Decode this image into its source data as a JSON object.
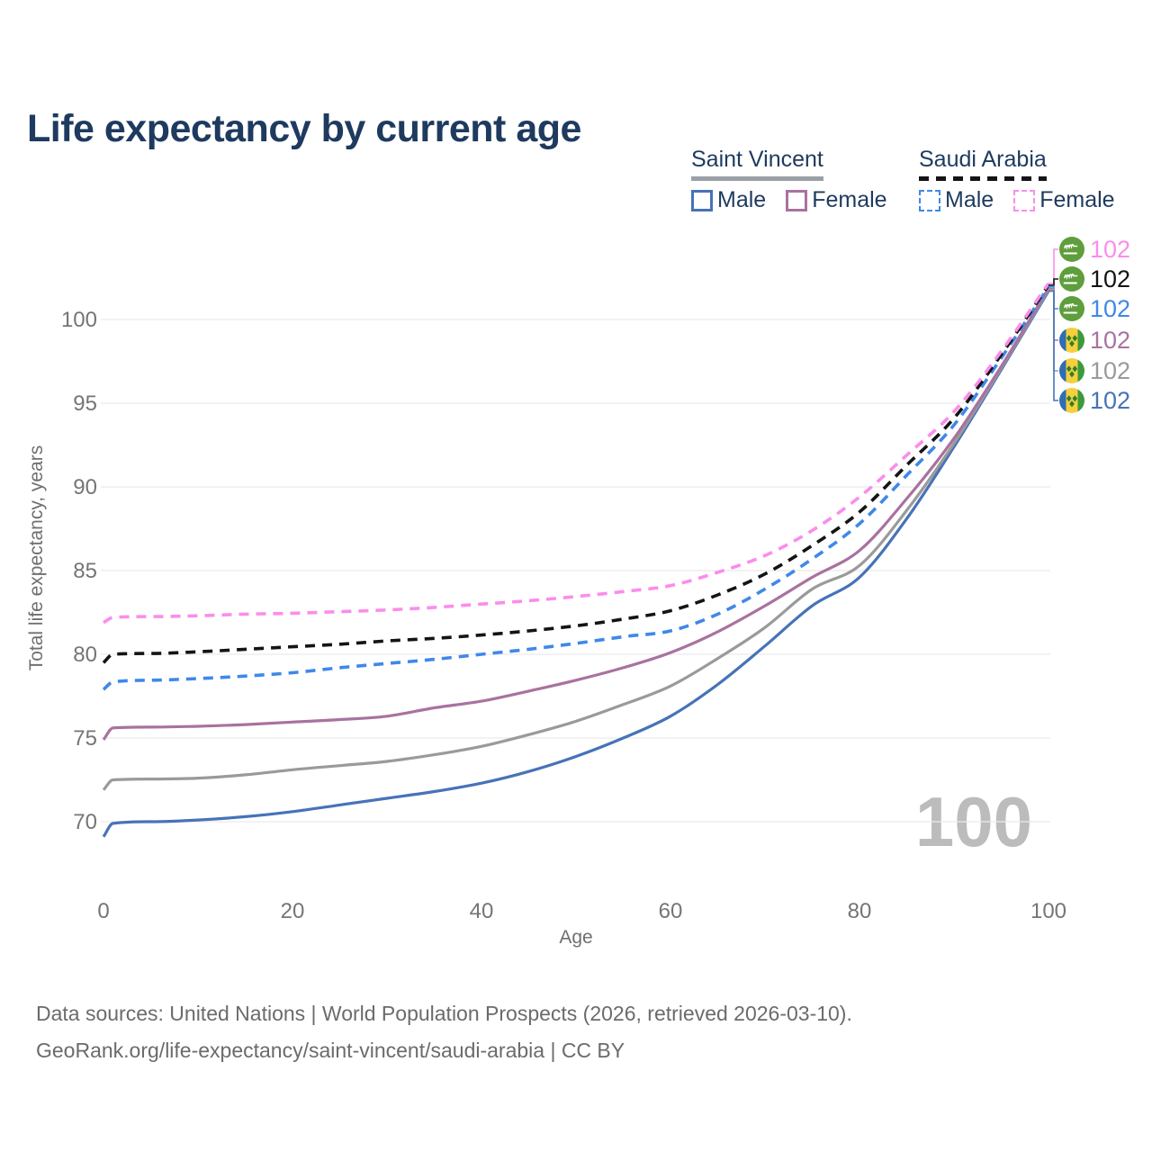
{
  "title": "Life expectancy by current age",
  "legend": {
    "groups": [
      {
        "name": "Saint Vincent",
        "line_style": "solid",
        "underline_color": "#9aa0a6",
        "items": [
          {
            "label": "Male",
            "color": "#4673b8",
            "dashed": false
          },
          {
            "label": "Female",
            "color": "#a9729f",
            "dashed": false
          }
        ]
      },
      {
        "name": "Saudi Arabia",
        "line_style": "dashed",
        "underline_color": "#141414",
        "items": [
          {
            "label": "Male",
            "color": "#3f88e8",
            "dashed": true
          },
          {
            "label": "Female",
            "color": "#fb8deb",
            "dashed": true
          }
        ]
      }
    ]
  },
  "chart_data": {
    "type": "line",
    "title": "Life expectancy by current age",
    "xlabel": "Age",
    "ylabel": "Total life expectancy, years",
    "xlim": [
      0,
      100
    ],
    "ylim": [
      68.5,
      102.5
    ],
    "x_ticks": [
      0,
      20,
      40,
      60,
      80,
      100
    ],
    "y_ticks": [
      70,
      75,
      80,
      85,
      90,
      95,
      100
    ],
    "grid": "horizontal",
    "legend_position": "top-right",
    "watermark": "100",
    "x": [
      0,
      1,
      5,
      10,
      15,
      20,
      25,
      30,
      35,
      40,
      45,
      50,
      55,
      60,
      65,
      70,
      75,
      80,
      85,
      90,
      95,
      100
    ],
    "series": [
      {
        "name": "Saudi Arabia Female",
        "country": "Saudi Arabia",
        "sex": "Female",
        "color": "#fb8deb",
        "dashed": true,
        "flag": "saudi-arabia",
        "end_label": "102",
        "values": [
          81.9,
          82.2,
          82.25,
          82.3,
          82.4,
          82.45,
          82.55,
          82.65,
          82.8,
          83.0,
          83.2,
          83.45,
          83.75,
          84.1,
          84.9,
          85.9,
          87.4,
          89.4,
          91.9,
          94.5,
          98.1,
          102.15
        ]
      },
      {
        "name": "Saudi Arabia Both sexes",
        "country": "Saudi Arabia",
        "sex": "Both",
        "color": "#141414",
        "dashed": true,
        "flag": "saudi-arabia",
        "end_label": "102",
        "values": [
          79.5,
          80.0,
          80.05,
          80.15,
          80.3,
          80.45,
          80.6,
          80.8,
          80.95,
          81.15,
          81.4,
          81.7,
          82.1,
          82.6,
          83.55,
          84.8,
          86.5,
          88.5,
          91.3,
          94.1,
          97.9,
          102.05
        ]
      },
      {
        "name": "Saudi Arabia Male",
        "country": "Saudi Arabia",
        "sex": "Male",
        "color": "#3f88e8",
        "dashed": true,
        "flag": "saudi-arabia",
        "end_label": "102",
        "values": [
          77.9,
          78.35,
          78.45,
          78.55,
          78.7,
          78.9,
          79.2,
          79.45,
          79.7,
          80.0,
          80.3,
          80.65,
          81.05,
          81.4,
          82.4,
          83.9,
          85.7,
          87.8,
          90.7,
          93.7,
          97.7,
          101.95
        ]
      },
      {
        "name": "Saint Vincent Female",
        "country": "Saint Vincent",
        "sex": "Female",
        "color": "#a9729f",
        "dashed": false,
        "flag": "saint-vincent",
        "end_label": "102",
        "values": [
          74.9,
          75.6,
          75.65,
          75.7,
          75.8,
          75.95,
          76.1,
          76.3,
          76.8,
          77.2,
          77.8,
          78.45,
          79.2,
          80.1,
          81.35,
          82.9,
          84.6,
          86.2,
          89.3,
          92.9,
          97.2,
          101.85
        ]
      },
      {
        "name": "Saint Vincent Both sexes",
        "country": "Saint Vincent",
        "sex": "Both",
        "color": "#9a9a9a",
        "dashed": false,
        "flag": "saint-vincent",
        "end_label": "102",
        "values": [
          71.9,
          72.5,
          72.55,
          72.6,
          72.8,
          73.1,
          73.35,
          73.6,
          74.0,
          74.5,
          75.2,
          76.0,
          77.0,
          78.1,
          79.75,
          81.6,
          83.9,
          85.3,
          88.6,
          92.6,
          97.1,
          101.78
        ]
      },
      {
        "name": "Saint Vincent Male",
        "country": "Saint Vincent",
        "sex": "Male",
        "color": "#4673b8",
        "dashed": false,
        "flag": "saint-vincent",
        "end_label": "102",
        "values": [
          69.1,
          69.9,
          70.0,
          70.1,
          70.3,
          70.6,
          71.0,
          71.4,
          71.8,
          72.3,
          73.0,
          73.9,
          75.0,
          76.3,
          78.2,
          80.5,
          82.9,
          84.6,
          88.1,
          92.4,
          97.0,
          101.7
        ]
      }
    ]
  },
  "flags": {
    "saudi_arabia": {
      "green": "#5f9e3c",
      "inscription": "#ffffff"
    },
    "saint_vincent": {
      "blue": "#2f6db5",
      "yellow": "#f5cf3d",
      "green": "#3c9a3c",
      "diamond": "#2a7f2a"
    }
  },
  "footer": {
    "line1": "Data sources: United Nations | World Population Prospects (2026, retrieved 2026-03-10).",
    "line2": "GeoRank.org/life-expectancy/saint-vincent/saudi-arabia | CC BY"
  }
}
